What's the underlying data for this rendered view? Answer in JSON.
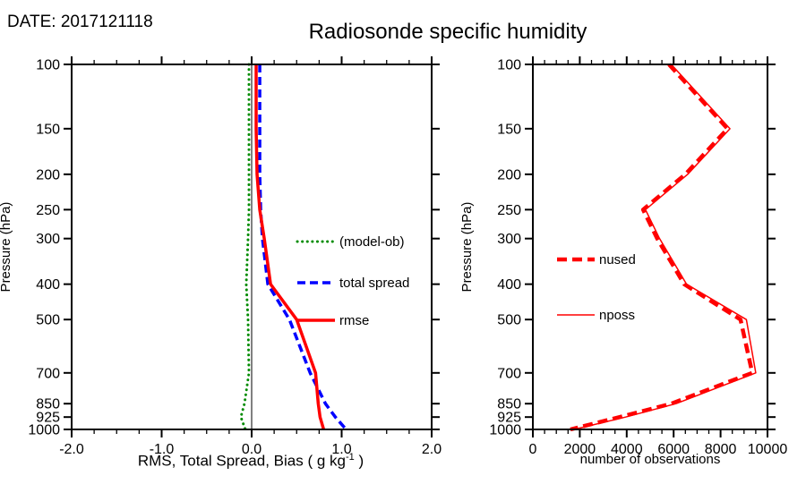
{
  "header": {
    "date_label": "DATE: 2017121118",
    "title": "Radiosonde specific humidity"
  },
  "chart_data": [
    {
      "type": "line",
      "panel": "left",
      "xlabel": "RMS, Total Spread, Bias ( g kg-1 )",
      "xlabel_parts": {
        "main": "RMS, Total Spread, Bias ( g kg",
        "sup": "-1",
        "end": " )"
      },
      "ylabel": "Pressure (hPa)",
      "xlim": [
        -2.0,
        2.0
      ],
      "xticks": [
        -2.0,
        -1.0,
        0.0,
        1.0,
        2.0
      ],
      "xtick_labels": [
        "-2.0",
        "-1.0",
        "0.0",
        "1.0",
        "2.0"
      ],
      "xminor_step": 0.25,
      "yscale": "log",
      "ylim": [
        100,
        1000
      ],
      "yticks": [
        100,
        150,
        200,
        250,
        300,
        400,
        500,
        700,
        850,
        925,
        1000
      ],
      "ytick_labels": [
        "100",
        "150",
        "200",
        "250",
        "300",
        "400",
        "500",
        "700",
        "850",
        "925",
        "1000"
      ],
      "zero_line": true,
      "grid": false,
      "legend_position": "inside-right",
      "pressure": [
        100,
        150,
        200,
        250,
        300,
        400,
        500,
        700,
        850,
        925,
        1000
      ],
      "series": [
        {
          "name": "(model-ob)",
          "color": "#008B00",
          "style": "dotted",
          "width": 3,
          "values": [
            -0.03,
            -0.03,
            -0.03,
            -0.03,
            -0.04,
            -0.06,
            -0.04,
            -0.03,
            -0.08,
            -0.12,
            -0.07
          ]
        },
        {
          "name": "total spread",
          "color": "#0000ff",
          "style": "dashed",
          "width": 3.5,
          "values": [
            0.09,
            0.09,
            0.09,
            0.1,
            0.12,
            0.18,
            0.42,
            0.65,
            0.82,
            0.93,
            1.05
          ]
        },
        {
          "name": "rmse",
          "color": "#ff0000",
          "style": "solid",
          "width": 3.5,
          "values": [
            0.05,
            0.05,
            0.06,
            0.09,
            0.14,
            0.21,
            0.5,
            0.71,
            0.74,
            0.76,
            0.8
          ]
        }
      ]
    },
    {
      "type": "line",
      "panel": "right",
      "xlabel": "number of observations",
      "ylabel": "Pressure (hPa)",
      "xlim": [
        0,
        10000
      ],
      "xticks": [
        0,
        2000,
        4000,
        6000,
        8000,
        10000
      ],
      "xtick_labels": [
        "0",
        "2000",
        "4000",
        "6000",
        "8000",
        "10000"
      ],
      "xminor_step": 500,
      "yscale": "log",
      "ylim": [
        100,
        1000
      ],
      "yticks": [
        100,
        150,
        200,
        250,
        300,
        400,
        500,
        700,
        850,
        925,
        1000
      ],
      "ytick_labels": [
        "100",
        "150",
        "200",
        "250",
        "300",
        "400",
        "500",
        "700",
        "850",
        "925",
        "1000"
      ],
      "zero_line": false,
      "grid": false,
      "legend_position": "inside-left",
      "pressure": [
        100,
        150,
        200,
        250,
        300,
        400,
        500,
        700,
        850,
        925,
        1000
      ],
      "series": [
        {
          "name": "nused",
          "color": "#ff0000",
          "style": "thick-dashed",
          "width": 4.5,
          "values": [
            5800,
            8300,
            6500,
            4700,
            5300,
            6450,
            8850,
            9350,
            5900,
            3700,
            1600
          ]
        },
        {
          "name": "nposs",
          "color": "#ff0000",
          "style": "solid",
          "width": 1.5,
          "values": [
            5900,
            8400,
            6600,
            4800,
            5400,
            6550,
            9100,
            9500,
            6100,
            3950,
            1750
          ]
        }
      ]
    }
  ]
}
